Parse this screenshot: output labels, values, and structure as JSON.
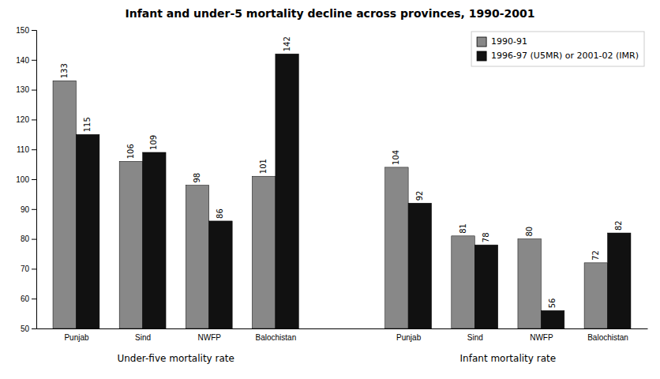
{
  "chart_data": {
    "type": "bar",
    "title": "Infant and under-5 mortality decline across provinces, 1990-2001",
    "categories": [
      "Punjab",
      "Sind",
      "NWFP",
      "Balochistan",
      "Punjab",
      "Sind",
      "NWFP",
      "Balochistan"
    ],
    "series": [
      {
        "name": "1990-91",
        "color": "#888888",
        "values": [
          133,
          106,
          98,
          101,
          104,
          81,
          80,
          72
        ]
      },
      {
        "name": "1996-97 (U5MR) or 2001-02 (IMR)",
        "color": "#111111",
        "values": [
          115,
          109,
          86,
          142,
          92,
          78,
          56,
          82
        ]
      }
    ],
    "annotations": [
      "Under-five mortality rate",
      "Infant mortality rate"
    ],
    "ylim": [
      50,
      150
    ],
    "yticks": [
      50,
      60,
      70,
      80,
      90,
      100,
      110,
      120,
      130,
      140,
      150
    ],
    "data_labels": true,
    "legend": "upper right"
  }
}
